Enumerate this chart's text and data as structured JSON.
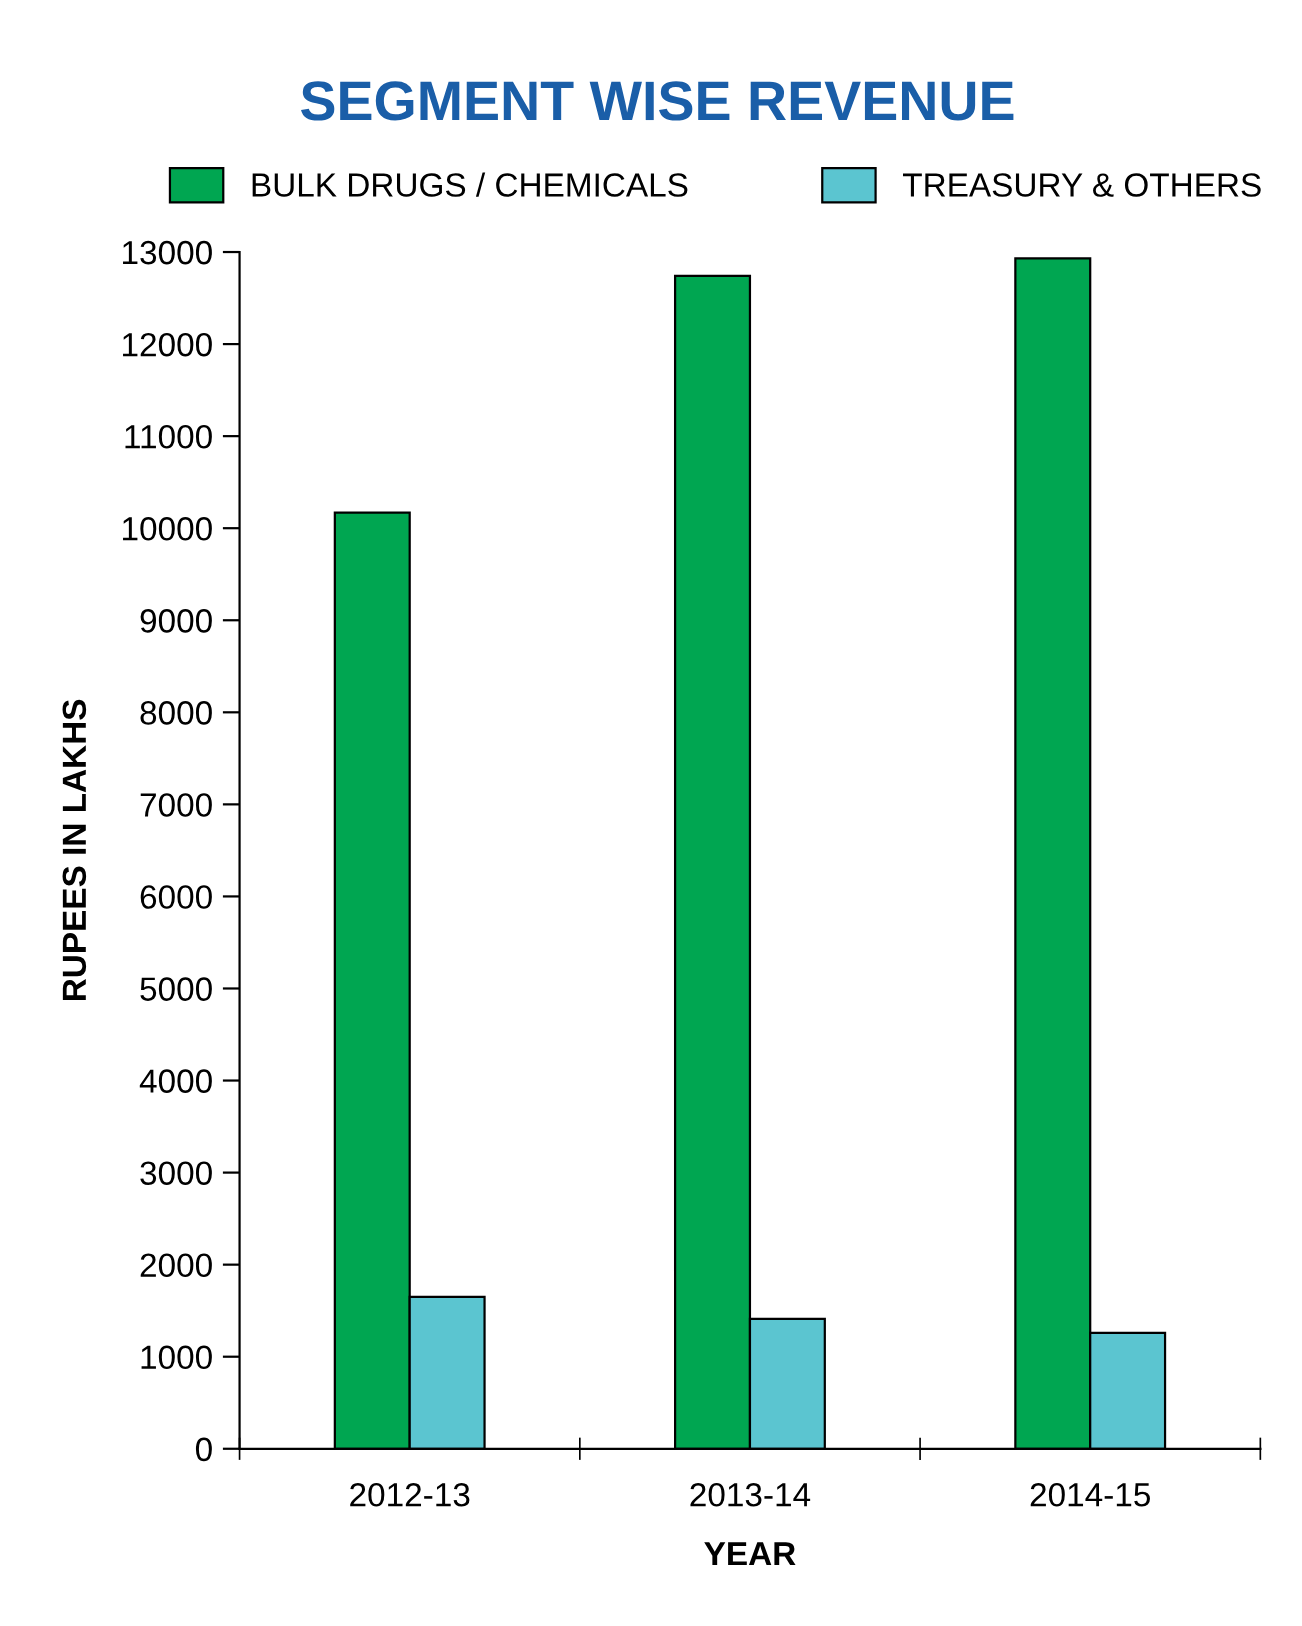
{
  "chart_data": {
    "type": "bar",
    "title": "SEGMENT WISE REVENUE",
    "xlabel": "YEAR",
    "ylabel": "RUPEES IN LAKHS",
    "categories": [
      "2012-13",
      "2013-14",
      "2014-15"
    ],
    "series": [
      {
        "name": "BULK DRUGS / CHEMICALS",
        "color": "#00a651",
        "values": [
          10170,
          12740,
          12930
        ]
      },
      {
        "name": "TREASURY & OTHERS",
        "color": "#5bc5d0",
        "values": [
          1650,
          1410,
          1260
        ]
      }
    ],
    "ylim": [
      0,
      13000
    ],
    "yticks": [
      0,
      1000,
      2000,
      3000,
      4000,
      5000,
      6000,
      7000,
      8000,
      9000,
      10000,
      11000,
      12000,
      13000
    ],
    "grid": false,
    "legend": "top"
  }
}
